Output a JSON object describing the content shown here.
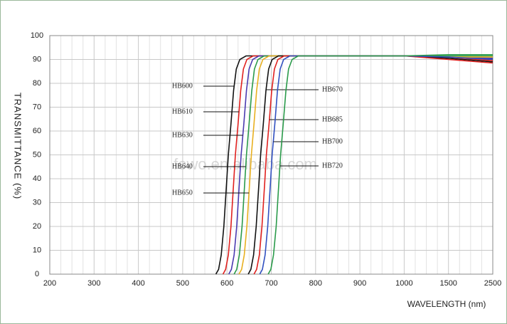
{
  "chart_data": {
    "type": "line",
    "x_label": "WAVELENGTH (nm)",
    "y_label": "TRANSMITTANCE (%)",
    "watermark": "fowo.en.alibaba.com",
    "xlim": [
      200,
      2500
    ],
    "xticks": [
      200,
      300,
      400,
      500,
      600,
      700,
      800,
      900,
      1000,
      1500,
      2500
    ],
    "ylim": [
      0,
      100
    ],
    "yticks": [
      0,
      10,
      20,
      30,
      40,
      50,
      60,
      70,
      80,
      90,
      100
    ],
    "grid": true,
    "series": [
      {
        "name": "HB600",
        "color": "#111111",
        "x": [
          575,
          581,
          587,
          593,
          599,
          603,
          609,
          615,
          621,
          629,
          643,
          1000,
          1500,
          2500
        ],
        "values": [
          0,
          2,
          8,
          20,
          38,
          50,
          63,
          77,
          86,
          90,
          91.5,
          91.5,
          91,
          90
        ]
      },
      {
        "name": "HB610",
        "color": "#e0201e",
        "x": [
          591,
          597,
          603,
          609,
          615,
          619,
          625,
          631,
          637,
          645,
          659,
          1000,
          1500,
          2500
        ],
        "values": [
          0,
          2,
          8,
          20,
          38,
          50,
          63,
          77,
          86,
          90,
          91.5,
          91.5,
          91,
          89.5
        ]
      },
      {
        "name": "HB630",
        "color": "#4a3ab0",
        "x": [
          604,
          610,
          616,
          622,
          628,
          632,
          638,
          644,
          650,
          658,
          672,
          1000,
          1500,
          2500
        ],
        "values": [
          0,
          2,
          8,
          20,
          38,
          50,
          63,
          77,
          86,
          90,
          91.5,
          91.5,
          91,
          90.5
        ]
      },
      {
        "name": "HB640",
        "color": "#2a9a4a",
        "x": [
          616,
          622,
          628,
          634,
          640,
          644,
          650,
          656,
          662,
          670,
          684,
          1000,
          1500,
          2500
        ],
        "values": [
          0,
          2,
          8,
          20,
          38,
          50,
          63,
          77,
          86,
          90,
          91.5,
          91.5,
          91.5,
          91.5
        ]
      },
      {
        "name": "HB650",
        "color": "#e8b020",
        "x": [
          627,
          633,
          639,
          645,
          651,
          655,
          661,
          667,
          673,
          681,
          695,
          1000,
          1500,
          2500
        ],
        "values": [
          0,
          2,
          8,
          20,
          38,
          50,
          63,
          77,
          86,
          90,
          91.5,
          91.5,
          91,
          91
        ]
      },
      {
        "name": "HB670",
        "color": "#111111",
        "x": [
          648,
          654,
          660,
          666,
          672,
          676,
          682,
          688,
          694,
          702,
          716,
          1000,
          1500,
          2500
        ],
        "values": [
          0,
          2,
          8,
          20,
          38,
          50,
          63,
          77,
          86,
          90,
          91.5,
          91.5,
          90.5,
          89
        ]
      },
      {
        "name": "HB685",
        "color": "#e0201e",
        "x": [
          661,
          667,
          673,
          679,
          685,
          689,
          695,
          701,
          707,
          715,
          729,
          1000,
          1500,
          2500
        ],
        "values": [
          0,
          2,
          8,
          20,
          38,
          50,
          63,
          77,
          86,
          90,
          91.5,
          91.5,
          90,
          88.5
        ]
      },
      {
        "name": "HB700",
        "color": "#3050c0",
        "x": [
          674,
          680,
          686,
          692,
          698,
          702,
          708,
          714,
          720,
          728,
          742,
          1000,
          1500,
          2500
        ],
        "values": [
          0,
          2,
          8,
          20,
          38,
          50,
          63,
          77,
          86,
          90,
          91.5,
          91.5,
          91,
          90
        ]
      },
      {
        "name": "HB720",
        "color": "#2a9a4a",
        "x": [
          693,
          699,
          705,
          711,
          717,
          721,
          727,
          733,
          739,
          747,
          761,
          1000,
          1500,
          2500
        ],
        "values": [
          0,
          2,
          8,
          20,
          38,
          50,
          63,
          77,
          86,
          90,
          91.5,
          91.5,
          92,
          92
        ]
      }
    ]
  }
}
